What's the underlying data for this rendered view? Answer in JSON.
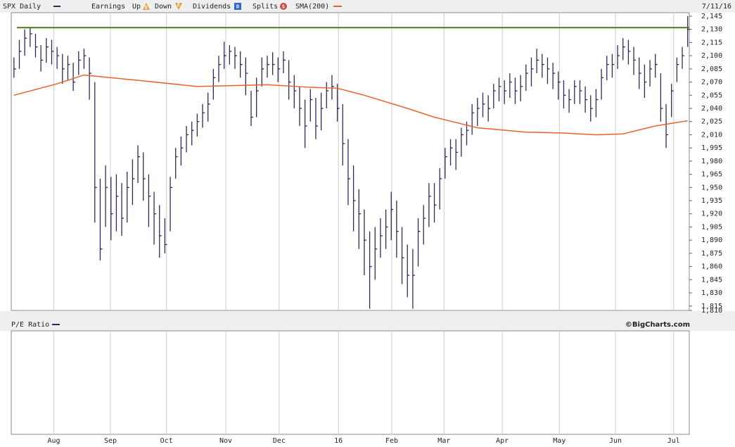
{
  "chart_data": {
    "type": "ohlc",
    "title": "SPX Daily",
    "date": "7/11/16",
    "legend": {
      "earnings": "Earnings",
      "up": "Up",
      "up_icon": "E",
      "down": "Down",
      "down_icon": "E",
      "dividends": "Dividends",
      "dividends_icon": "D",
      "splits": "Splits",
      "splits_icon": "S"
    },
    "series": [
      {
        "name": "SPX Daily",
        "color": "#2b2b5a",
        "high": [
          2098,
          2118,
          2130,
          2132,
          2125,
          2112,
          2120,
          2118,
          2110,
          2102,
          2100,
          2092,
          2105,
          2108,
          2098,
          2070,
          1960,
          1975,
          1962,
          1965,
          1955,
          1968,
          1982,
          1998,
          1990,
          1965,
          1945,
          1930,
          1915,
          1962,
          1995,
          2008,
          2020,
          2025,
          2034,
          2045,
          2058,
          2085,
          2100,
          2116,
          2112,
          2110,
          2105,
          2098,
          2060,
          2075,
          2098,
          2100,
          2104,
          2098,
          2105,
          2095,
          2078,
          2065,
          2050,
          2062,
          2052,
          2058,
          2070,
          2078,
          2068,
          2045,
          2005,
          1975,
          1948,
          1925,
          1900,
          1905,
          1915,
          1925,
          1945,
          1935,
          1905,
          1885,
          1880,
          1915,
          1930,
          1955,
          1955,
          1972,
          1995,
          2005,
          2005,
          2018,
          2025,
          2045,
          2052,
          2058,
          2055,
          2068,
          2075,
          2072,
          2080,
          2075,
          2078,
          2090,
          2098,
          2108,
          2102,
          2098,
          2092,
          2082,
          2072,
          2062,
          2072,
          2072,
          2065,
          2055,
          2062,
          2085,
          2100,
          2102,
          2112,
          2120,
          2118,
          2110,
          2098,
          2090,
          2095,
          2102,
          2080,
          2045,
          2068,
          2098,
          2110,
          2145
        ],
        "low": [
          2075,
          2085,
          2100,
          2110,
          2098,
          2082,
          2092,
          2090,
          2085,
          2068,
          2072,
          2060,
          2078,
          2085,
          2050,
          1910,
          1867,
          1905,
          1890,
          1900,
          1895,
          1910,
          1930,
          1955,
          1935,
          1905,
          1885,
          1870,
          1875,
          1900,
          1960,
          1975,
          1990,
          1998,
          2008,
          2018,
          2025,
          2050,
          2070,
          2085,
          2090,
          2085,
          2075,
          2055,
          2020,
          2030,
          2065,
          2075,
          2078,
          2070,
          2080,
          2050,
          2040,
          2020,
          1995,
          2025,
          2005,
          2015,
          2040,
          2050,
          2025,
          1975,
          1930,
          1900,
          1880,
          1850,
          1812,
          1845,
          1870,
          1880,
          1890,
          1870,
          1840,
          1825,
          1812,
          1860,
          1885,
          1905,
          1910,
          1925,
          1960,
          1975,
          1970,
          1985,
          1998,
          2010,
          2020,
          2030,
          2025,
          2040,
          2048,
          2045,
          2052,
          2045,
          2048,
          2060,
          2065,
          2080,
          2075,
          2068,
          2062,
          2050,
          2040,
          2035,
          2045,
          2045,
          2035,
          2025,
          2030,
          2050,
          2072,
          2075,
          2085,
          2095,
          2090,
          2078,
          2062,
          2052,
          2065,
          2075,
          2025,
          1995,
          2030,
          2070,
          2085,
          2110
        ],
        "close": [
          2085,
          2105,
          2120,
          2125,
          2110,
          2095,
          2110,
          2105,
          2100,
          2085,
          2090,
          2070,
          2095,
          2100,
          2080,
          1950,
          1880,
          1950,
          1920,
          1940,
          1915,
          1950,
          1960,
          1985,
          1960,
          1940,
          1920,
          1895,
          1885,
          1950,
          1985,
          1995,
          2010,
          2015,
          2025,
          2035,
          2045,
          2075,
          2090,
          2100,
          2105,
          2100,
          2090,
          2080,
          2030,
          2060,
          2085,
          2090,
          2090,
          2085,
          2095,
          2070,
          2060,
          2040,
          2020,
          2050,
          2020,
          2040,
          2060,
          2065,
          2040,
          2000,
          1960,
          1935,
          1920,
          1890,
          1860,
          1880,
          1895,
          1905,
          1925,
          1900,
          1870,
          1850,
          1850,
          1900,
          1915,
          1940,
          1930,
          1960,
          1985,
          1995,
          1990,
          2010,
          2015,
          2035,
          2040,
          2045,
          2040,
          2060,
          2065,
          2060,
          2070,
          2060,
          2065,
          2080,
          2085,
          2095,
          2090,
          2085,
          2080,
          2070,
          2055,
          2050,
          2065,
          2060,
          2050,
          2040,
          2050,
          2075,
          2090,
          2090,
          2100,
          2110,
          2105,
          2095,
          2080,
          2070,
          2085,
          2090,
          2040,
          2010,
          2060,
          2090,
          2100,
          2130
        ]
      }
    ],
    "sma": {
      "name": "SMA(200)",
      "color": "#e8622a",
      "x": [
        0,
        8,
        13,
        23,
        34,
        47,
        55,
        60,
        65,
        73,
        78,
        86,
        95,
        102,
        108,
        113,
        119,
        125
      ],
      "values": [
        2055,
        2068,
        2078,
        2072,
        2065,
        2067,
        2064,
        2063,
        2055,
        2040,
        2030,
        2018,
        2013,
        2012,
        2010,
        2011,
        2020,
        2026
      ]
    },
    "reference_line": {
      "value": 2132,
      "color": "#4a7a1a"
    },
    "xlim": [
      -0.5,
      125.3
    ],
    "xticks": [
      {
        "value": 7.4,
        "label": "Aug"
      },
      {
        "value": 17.9,
        "label": "Sep"
      },
      {
        "value": 28.3,
        "label": "Oct"
      },
      {
        "value": 39.3,
        "label": "Nov"
      },
      {
        "value": 49.2,
        "label": "Dec"
      },
      {
        "value": 60.2,
        "label": "16"
      },
      {
        "value": 70.1,
        "label": "Feb"
      },
      {
        "value": 79.8,
        "label": "Mar"
      },
      {
        "value": 90.6,
        "label": "Apr"
      },
      {
        "value": 101.2,
        "label": "May"
      },
      {
        "value": 111.6,
        "label": "Jun"
      },
      {
        "value": 122.4,
        "label": "Jul"
      }
    ],
    "ylim": [
      1810,
      2149
    ],
    "yticks": [
      {
        "value": 1810,
        "label": "1,810"
      },
      {
        "value": 1815,
        "label": "1,815"
      },
      {
        "value": 1830,
        "label": "1,830"
      },
      {
        "value": 1845,
        "label": "1,845"
      },
      {
        "value": 1860,
        "label": "1,860"
      },
      {
        "value": 1875,
        "label": "1,875"
      },
      {
        "value": 1890,
        "label": "1,890"
      },
      {
        "value": 1905,
        "label": "1,905"
      },
      {
        "value": 1920,
        "label": "1,920"
      },
      {
        "value": 1935,
        "label": "1,935"
      },
      {
        "value": 1950,
        "label": "1,950"
      },
      {
        "value": 1965,
        "label": "1,965"
      },
      {
        "value": 1980,
        "label": "1,980"
      },
      {
        "value": 1995,
        "label": "1,995"
      },
      {
        "value": 2010,
        "label": "2,010"
      },
      {
        "value": 2025,
        "label": "2,025"
      },
      {
        "value": 2040,
        "label": "2,040"
      },
      {
        "value": 2055,
        "label": "2,055"
      },
      {
        "value": 2070,
        "label": "2,070"
      },
      {
        "value": 2085,
        "label": "2,085"
      },
      {
        "value": 2100,
        "label": "2,100"
      },
      {
        "value": 2115,
        "label": "2,115"
      },
      {
        "value": 2130,
        "label": "2,130"
      },
      {
        "value": 2145,
        "label": "2,145"
      }
    ],
    "lower_panel": {
      "title": "P/E Ratio",
      "credit": "©BigCharts.com"
    }
  }
}
